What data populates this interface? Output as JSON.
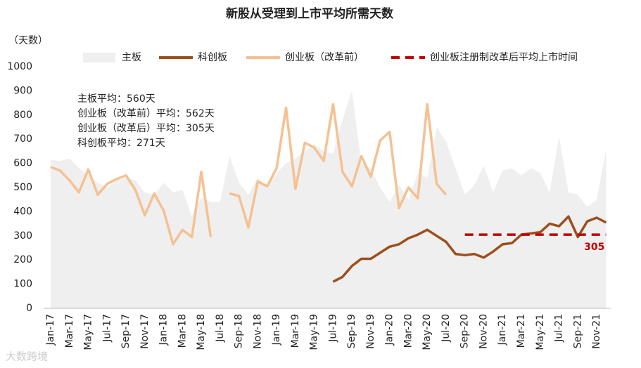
{
  "chart_data": {
    "type": "line",
    "title": "新股从受理到上市平均所需天数",
    "y_label": "（天数）",
    "watermark": "大数跨境",
    "annotations": [
      "主板平均：560天",
      "创业板（改革前）平均：562天",
      "创业板（改革后）平均：305天",
      "科创板平均：271天"
    ],
    "categories": [
      "Jan-17",
      null,
      "Mar-17",
      null,
      "May-17",
      null,
      "Jul-17",
      null,
      "Sep-17",
      null,
      "Nov-17",
      null,
      "Jan-18",
      null,
      "Mar-18",
      null,
      "May-18",
      null,
      "Jul-18",
      null,
      "Sep-18",
      null,
      "Nov-18",
      null,
      "Jan-19",
      null,
      "Mar-19",
      null,
      "May-19",
      null,
      "Jul-19",
      null,
      "Sep-19",
      null,
      "Nov-19",
      null,
      "Jan-20",
      null,
      "Mar-20",
      null,
      "May-20",
      null,
      "Jul-20",
      null,
      "Sep-20",
      null,
      "Nov-20",
      null,
      "Jan-21",
      null,
      "Mar-21",
      null,
      "May-21",
      null,
      "Jul-21",
      null,
      "Sep-21",
      null,
      "Nov-21",
      null
    ],
    "ylim": [
      0,
      1000
    ],
    "yticks": [
      0,
      100,
      200,
      300,
      400,
      500,
      600,
      700,
      800,
      900,
      1000
    ],
    "grid": false,
    "legend": "top",
    "series": [
      {
        "name": "主板",
        "type": "area",
        "color": "#efefef",
        "values": [
          615,
          610,
          620,
          580,
          550,
          520,
          500,
          530,
          540,
          530,
          480,
          470,
          520,
          480,
          490,
          380,
          460,
          440,
          440,
          630,
          520,
          470,
          540,
          500,
          560,
          600,
          620,
          650,
          680,
          650,
          640,
          780,
          900,
          600,
          580,
          500,
          440,
          510,
          450,
          560,
          540,
          750,
          690,
          580,
          470,
          510,
          590,
          480,
          570,
          580,
          550,
          580,
          560,
          480,
          710,
          480,
          470,
          420,
          450,
          660
        ]
      },
      {
        "name": "科创板",
        "type": "line",
        "color": "#9c4f1c",
        "values": [
          null,
          null,
          null,
          null,
          null,
          null,
          null,
          null,
          null,
          null,
          null,
          null,
          null,
          null,
          null,
          null,
          null,
          null,
          null,
          null,
          null,
          null,
          null,
          null,
          null,
          null,
          null,
          null,
          null,
          null,
          110,
          130,
          175,
          205,
          205,
          230,
          255,
          265,
          290,
          305,
          325,
          300,
          275,
          225,
          220,
          225,
          210,
          235,
          265,
          270,
          305,
          310,
          315,
          350,
          340,
          380,
          295,
          360,
          375,
          355
        ]
      },
      {
        "name": "创业板（改革前）",
        "type": "line",
        "color": "#f5c192",
        "values": [
          585,
          570,
          530,
          480,
          575,
          470,
          515,
          535,
          550,
          490,
          385,
          475,
          405,
          265,
          325,
          295,
          565,
          295,
          null,
          475,
          465,
          335,
          525,
          505,
          580,
          830,
          495,
          685,
          665,
          610,
          845,
          565,
          505,
          630,
          545,
          695,
          730,
          415,
          500,
          455,
          845,
          515,
          470,
          null,
          null,
          null,
          null,
          null,
          null,
          null,
          null,
          null,
          null,
          null,
          null,
          null,
          null,
          null,
          null,
          null
        ]
      },
      {
        "name": "创业板注册制改革后平均上市时间",
        "type": "dashed",
        "color": "#c00000",
        "values": [
          null,
          null,
          null,
          null,
          null,
          null,
          null,
          null,
          null,
          null,
          null,
          null,
          null,
          null,
          null,
          null,
          null,
          null,
          null,
          null,
          null,
          null,
          null,
          null,
          null,
          null,
          null,
          null,
          null,
          null,
          null,
          null,
          null,
          null,
          null,
          null,
          null,
          null,
          null,
          null,
          null,
          null,
          null,
          null,
          305,
          305,
          305,
          305,
          305,
          305,
          305,
          305,
          305,
          305,
          305,
          305,
          305,
          305,
          305,
          305
        ],
        "value_labels": [
          null,
          null,
          null,
          null,
          null,
          null,
          null,
          null,
          null,
          null,
          null,
          null,
          null,
          null,
          null,
          null,
          null,
          null,
          null,
          null,
          null,
          null,
          null,
          null,
          null,
          null,
          null,
          null,
          null,
          null,
          null,
          null,
          null,
          null,
          null,
          null,
          null,
          null,
          null,
          null,
          null,
          null,
          null,
          null,
          null,
          null,
          null,
          null,
          null,
          null,
          null,
          null,
          null,
          null,
          null,
          null,
          null,
          null,
          null,
          "305"
        ]
      }
    ]
  }
}
